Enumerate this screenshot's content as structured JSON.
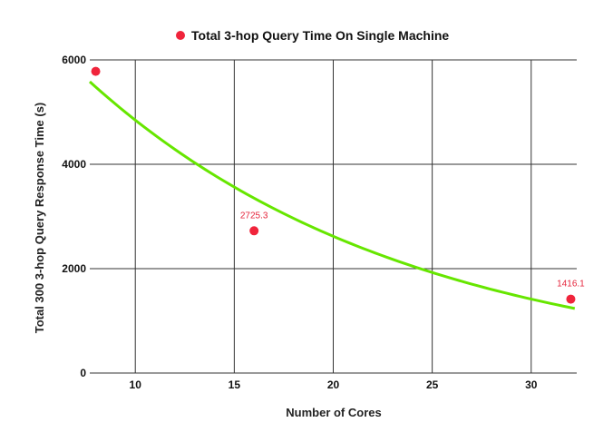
{
  "chart_data": {
    "type": "scatter",
    "legend": {
      "position": "top-center"
    },
    "xlabel": "Number of Cores",
    "ylabel": "Total 300 3-hop Query Response Time (s)",
    "xlim": [
      7.7,
      32.3
    ],
    "ylim": [
      0,
      6000
    ],
    "x_ticks": [
      10,
      15,
      20,
      25,
      30
    ],
    "y_ticks": [
      0,
      2000,
      4000,
      6000
    ],
    "grid": true,
    "series": [
      {
        "name": "Total  3-hop Query Time On Single Machine",
        "color": "#f0243b",
        "points": [
          {
            "x": 8,
            "y": 5780,
            "label": ""
          },
          {
            "x": 16,
            "y": 2725.3,
            "label": "2725.3"
          },
          {
            "x": 32,
            "y": 1416.1,
            "label": "1416.1"
          }
        ]
      }
    ],
    "trendline": {
      "type": "exponential",
      "color": "#66e600",
      "x_range": [
        7.7,
        32.2
      ],
      "equation": {
        "a": 8964,
        "b": -0.0615
      }
    }
  }
}
